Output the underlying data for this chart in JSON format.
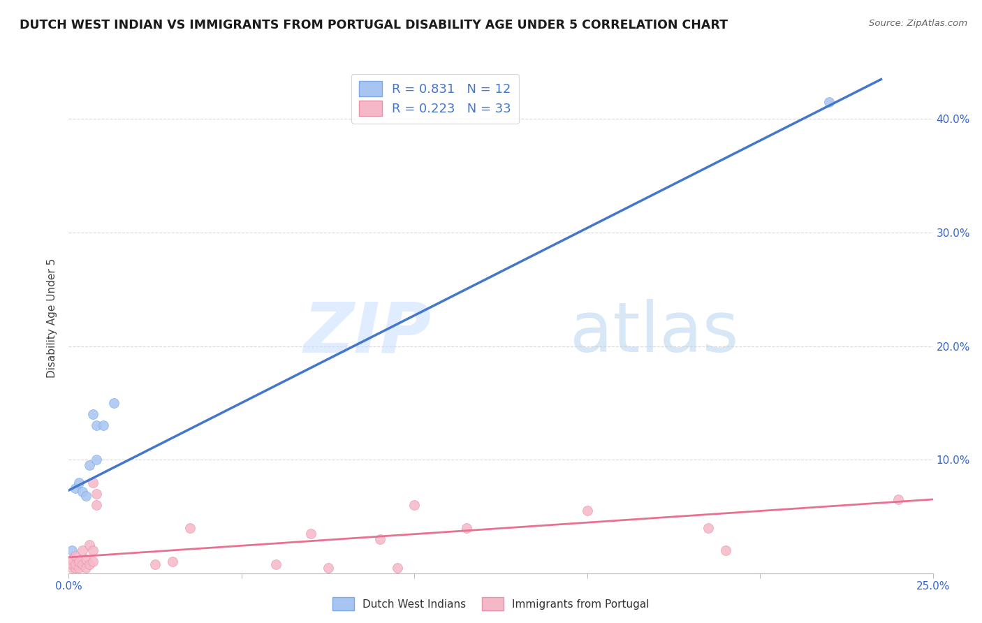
{
  "title": "DUTCH WEST INDIAN VS IMMIGRANTS FROM PORTUGAL DISABILITY AGE UNDER 5 CORRELATION CHART",
  "source": "Source: ZipAtlas.com",
  "ylabel": "Disability Age Under 5",
  "xlim": [
    0.0,
    0.25
  ],
  "ylim": [
    0.0,
    0.45
  ],
  "xticks": [
    0.0,
    0.05,
    0.1,
    0.15,
    0.2,
    0.25
  ],
  "yticks": [
    0.1,
    0.2,
    0.3,
    0.4
  ],
  "ytick_labels_right": [
    "10.0%",
    "20.0%",
    "30.0%",
    "40.0%"
  ],
  "xtick_labels": [
    "0.0%",
    "",
    "",
    "",
    "",
    "25.0%"
  ],
  "background_color": "#ffffff",
  "grid_color": "#d8d8d8",
  "watermark_zip": "ZIP",
  "watermark_atlas": "atlas",
  "blue_color": "#a8c4f0",
  "pink_color": "#f5b8c8",
  "blue_scatter_edge": "#7aaae8",
  "pink_scatter_edge": "#e890aa",
  "blue_line_color": "#4477cc",
  "pink_line_color": "#e87090",
  "legend_R1": "R = 0.831",
  "legend_N1": "N = 12",
  "legend_R2": "R = 0.223",
  "legend_N2": "N = 33",
  "dutch_x": [
    0.001,
    0.002,
    0.003,
    0.004,
    0.005,
    0.006,
    0.007,
    0.008,
    0.008,
    0.01,
    0.013,
    0.22
  ],
  "dutch_y": [
    0.02,
    0.075,
    0.08,
    0.072,
    0.068,
    0.095,
    0.14,
    0.13,
    0.1,
    0.13,
    0.15,
    0.415
  ],
  "portugal_x": [
    0.001,
    0.001,
    0.001,
    0.002,
    0.002,
    0.002,
    0.003,
    0.003,
    0.004,
    0.004,
    0.005,
    0.005,
    0.006,
    0.006,
    0.007,
    0.007,
    0.007,
    0.008,
    0.008,
    0.025,
    0.03,
    0.035,
    0.06,
    0.07,
    0.075,
    0.09,
    0.095,
    0.1,
    0.115,
    0.15,
    0.185,
    0.19,
    0.24
  ],
  "portugal_y": [
    0.005,
    0.008,
    0.012,
    0.005,
    0.008,
    0.015,
    0.005,
    0.01,
    0.008,
    0.02,
    0.005,
    0.012,
    0.008,
    0.025,
    0.01,
    0.02,
    0.08,
    0.06,
    0.07,
    0.008,
    0.01,
    0.04,
    0.008,
    0.035,
    0.005,
    0.03,
    0.005,
    0.06,
    0.04,
    0.055,
    0.04,
    0.02,
    0.065
  ],
  "blue_trend_x": [
    0.0,
    0.235
  ],
  "blue_trend_y": [
    0.073,
    0.435
  ],
  "pink_trend_x": [
    0.0,
    0.25
  ],
  "pink_trend_y": [
    0.014,
    0.065
  ],
  "marker_size": 100,
  "title_fontsize": 12.5,
  "label_fontsize": 11,
  "tick_fontsize": 11,
  "legend_fontsize": 13,
  "legend_color": "#4477cc"
}
